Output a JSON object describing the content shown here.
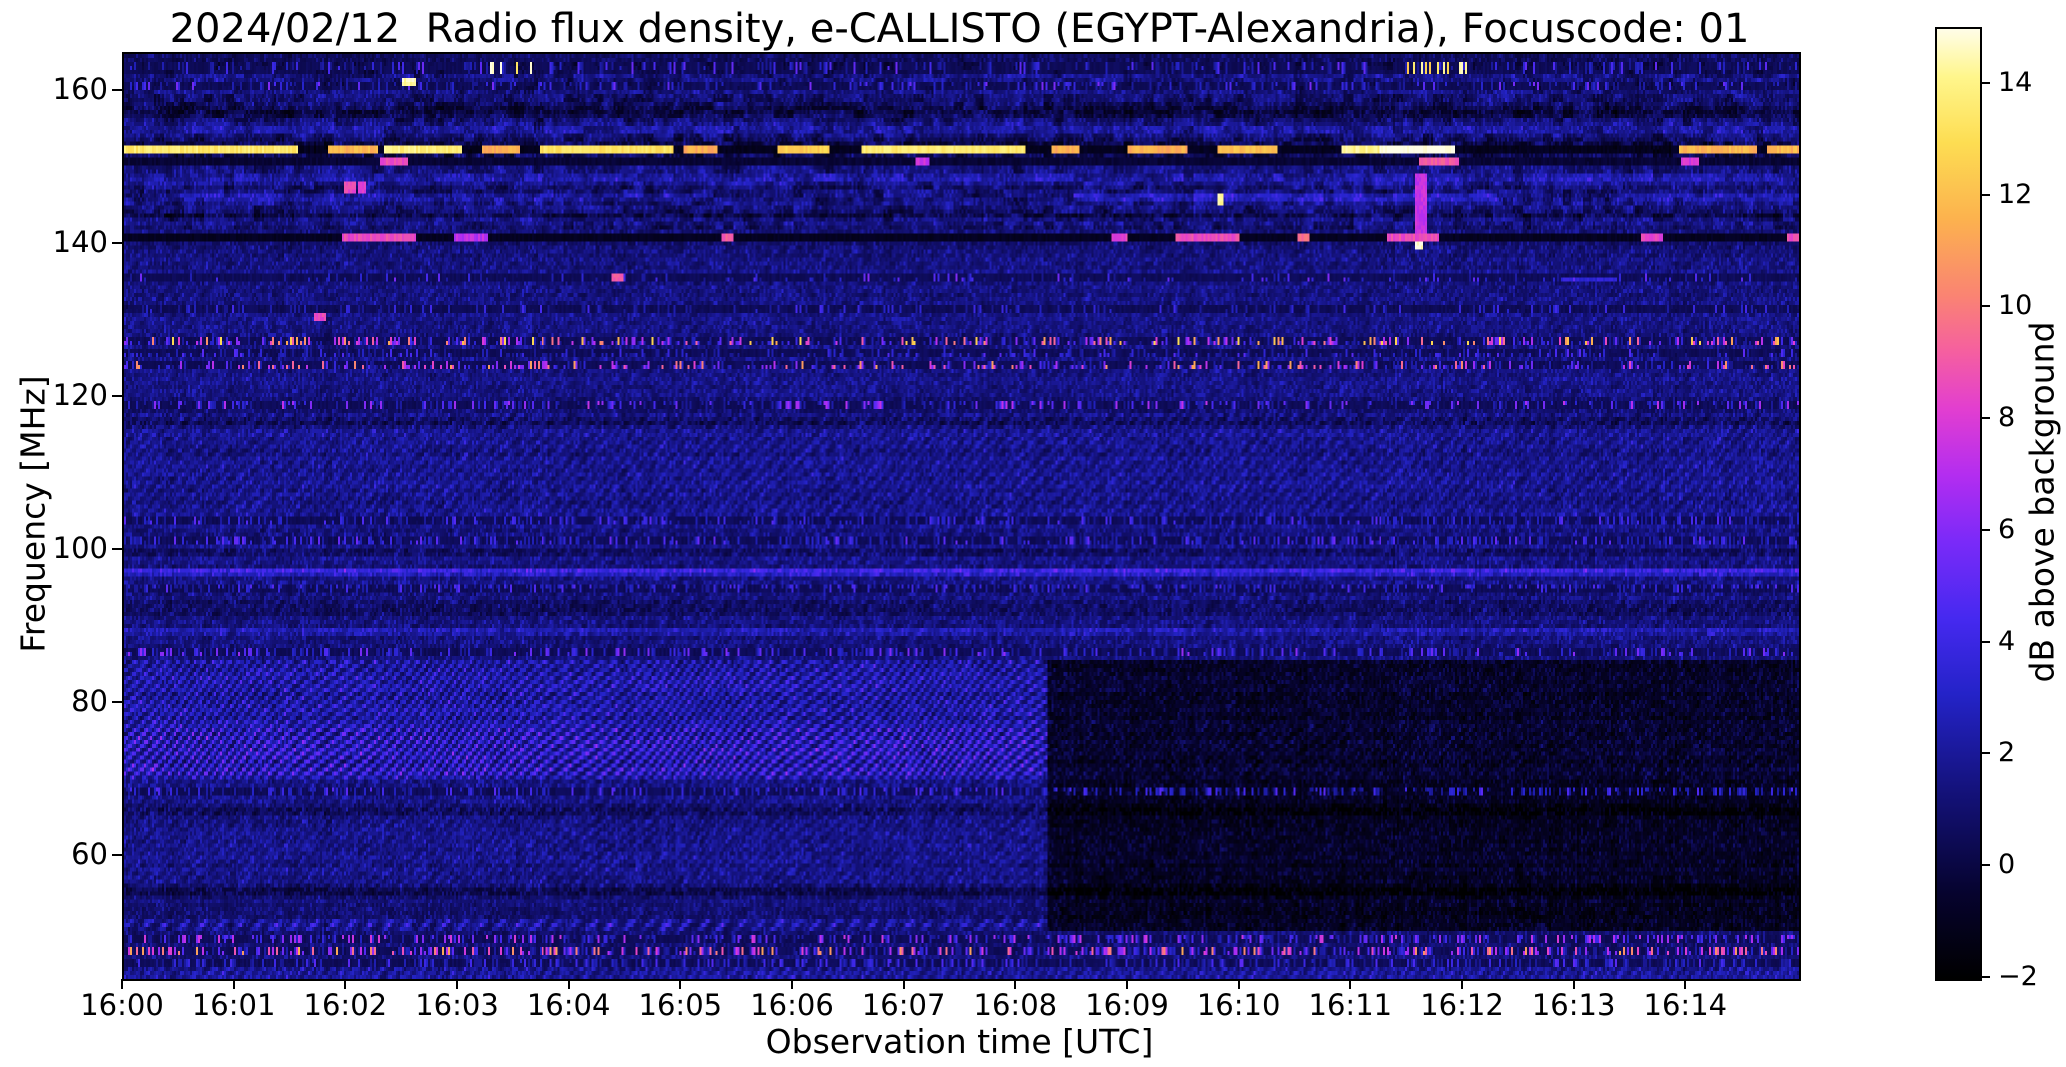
{
  "chart_data": {
    "type": "heatmap",
    "subtype": "radio-spectrogram",
    "title": "2024/02/12  Radio flux density, e-CALLISTO (EGYPT-Alexandria), Focuscode: 01",
    "xlabel": "Observation time [UTC]",
    "ylabel": "Frequency [MHz]",
    "x_ticks": [
      "16:00",
      "16:01",
      "16:02",
      "16:03",
      "16:04",
      "16:05",
      "16:06",
      "16:07",
      "16:08",
      "16:09",
      "16:10",
      "16:11",
      "16:12",
      "16:13",
      "16:14"
    ],
    "x_range_minutes": [
      0,
      15
    ],
    "y_ticks": [
      160,
      140,
      120,
      100,
      80,
      60
    ],
    "freq_range_mhz": [
      44,
      165
    ],
    "grid": false,
    "colorbar": {
      "label": "dB above background",
      "tick_labels": [
        "14",
        "12",
        "10",
        "8",
        "6",
        "4",
        "2",
        "0",
        "−2"
      ],
      "tick_values": [
        14,
        12,
        10,
        8,
        6,
        4,
        2,
        0,
        -2
      ],
      "range": [
        -2,
        15
      ],
      "colormap": "gnuplot2",
      "stops": [
        {
          "t": 0.0,
          "c": "#000000"
        },
        {
          "t": 0.09,
          "c": "#06032e"
        },
        {
          "t": 0.2,
          "c": "#14127c"
        },
        {
          "t": 0.3,
          "c": "#2423c8"
        },
        {
          "t": 0.38,
          "c": "#4629f0"
        },
        {
          "t": 0.46,
          "c": "#7a2af8"
        },
        {
          "t": 0.53,
          "c": "#b32df0"
        },
        {
          "t": 0.6,
          "c": "#e23ed0"
        },
        {
          "t": 0.66,
          "c": "#f55fa0"
        },
        {
          "t": 0.72,
          "c": "#fa8472"
        },
        {
          "t": 0.8,
          "c": "#fcb24e"
        },
        {
          "t": 0.88,
          "c": "#fddd52"
        },
        {
          "t": 0.95,
          "c": "#fff68c"
        },
        {
          "t": 1.0,
          "c": "#fffde8"
        }
      ]
    },
    "background_level_db": 0.85,
    "background_step": {
      "t_min": 8.27,
      "f0": 50.2,
      "f1": 85.5,
      "delta": -2.1,
      "fringe_scale": 0.22
    },
    "block_zone": {
      "f0": 142,
      "f1": 164,
      "amp": 1.9
    },
    "bright_line": {
      "f": 152.6,
      "hw": 0.62,
      "gap_level": -1.3,
      "segments": [
        [
          0.0,
          1.55,
          13.5
        ],
        [
          1.82,
          2.28,
          11.8
        ],
        [
          2.32,
          3.02,
          13.8
        ],
        [
          3.2,
          3.55,
          11.5
        ],
        [
          3.72,
          4.92,
          13.2
        ],
        [
          5.02,
          5.32,
          11.5
        ],
        [
          5.85,
          6.32,
          12.5
        ],
        [
          6.6,
          8.08,
          13.6
        ],
        [
          8.3,
          8.55,
          11.5
        ],
        [
          8.98,
          9.52,
          11.5
        ],
        [
          9.8,
          10.32,
          12.0
        ],
        [
          10.9,
          11.25,
          14.0
        ],
        [
          11.25,
          11.92,
          15.2
        ],
        [
          13.92,
          14.62,
          11.8
        ],
        [
          14.72,
          15.0,
          11.8
        ]
      ]
    },
    "rows": [
      {
        "f": 164.3,
        "hw": 0.8,
        "type": "dark",
        "depth": 0.8
      },
      {
        "f": 163.4,
        "hw": 0.8,
        "type": "speckle",
        "density": 0.3,
        "vmax": 5.5,
        "dark": true,
        "white_clusters": [
          [
            3.25,
            3.7
          ],
          [
            11.5,
            12.1
          ]
        ]
      },
      {
        "f": 160.9,
        "hw": 0.5,
        "type": "speckle",
        "density": 0.35,
        "vmax": 6,
        "dark": true
      },
      {
        "f": 157.6,
        "hw": 0.9,
        "type": "dark",
        "depth": 1.5
      },
      {
        "f": 155.2,
        "hw": 0.8,
        "type": "blue",
        "amp": 1.0
      },
      {
        "f": 152.6,
        "hw": 1.2,
        "type": "dark",
        "depth": 1.6
      },
      {
        "f": 150.8,
        "hw": 0.45,
        "type": "segline",
        "base": -0.6,
        "segments": [
          [
            2.3,
            2.55,
            8.5
          ],
          [
            7.08,
            7.22,
            7.5
          ],
          [
            11.6,
            11.95,
            9.0
          ],
          [
            13.95,
            14.1,
            8.0
          ]
        ]
      },
      {
        "f": 148.6,
        "hw": 0.7,
        "type": "blue",
        "amp": 1.1
      },
      {
        "f": 146.3,
        "hw": 0.6,
        "type": "segline-add",
        "segments": [
          [
            0.3,
            5.2,
            1.3
          ],
          [
            8.5,
            12.3,
            2.0
          ],
          [
            13.3,
            15.0,
            1.4
          ]
        ]
      },
      {
        "f": 144.0,
        "hw": 0.5,
        "type": "dark",
        "depth": 1.0
      },
      {
        "f": 141.0,
        "hw": 0.55,
        "type": "segline",
        "base": -1.2,
        "segments": [
          [
            1.95,
            2.62,
            8.6
          ],
          [
            2.95,
            3.25,
            7.2
          ],
          [
            5.36,
            5.46,
            9.0
          ],
          [
            8.84,
            8.98,
            8.2
          ],
          [
            9.42,
            9.98,
            8.6
          ],
          [
            10.5,
            10.62,
            9.5
          ],
          [
            11.32,
            11.78,
            8.6
          ],
          [
            13.58,
            13.78,
            8.2
          ],
          [
            14.9,
            15.0,
            8.4
          ]
        ]
      },
      {
        "f": 135.6,
        "hw": 0.5,
        "type": "speckle",
        "density": 0.18,
        "vmax": 6,
        "dark": true
      },
      {
        "f": 131.6,
        "hw": 0.5,
        "type": "speckle",
        "density": 0.3,
        "vmax": 4.5,
        "dark": true
      },
      {
        "f": 127.3,
        "hw": 0.55,
        "type": "rfi",
        "density": 0.55,
        "vmax": 13,
        "dark": true
      },
      {
        "f": 125.7,
        "hw": 0.45,
        "type": "speckle",
        "density": 0.4,
        "vmax": 5,
        "dark": true
      },
      {
        "f": 124.1,
        "hw": 0.55,
        "type": "rfi",
        "density": 0.5,
        "vmax": 11.5,
        "dark": true
      },
      {
        "f": 119.2,
        "hw": 0.6,
        "type": "rfi",
        "density": 0.45,
        "vmax": 7.5,
        "dark": true
      },
      {
        "f": 116.9,
        "hw": 0.7,
        "type": "dark",
        "depth": 1.2
      },
      {
        "f": 103.9,
        "hw": 0.5,
        "type": "speckle",
        "density": 0.5,
        "vmax": 5,
        "dark": true
      },
      {
        "f": 101.3,
        "hw": 0.5,
        "type": "speckle",
        "density": 0.5,
        "vmax": 5.5,
        "dark": true
      },
      {
        "f": 99.8,
        "hw": 0.4,
        "type": "dark",
        "depth": 1.2
      },
      {
        "f": 97.4,
        "hw": 0.55,
        "type": "blue",
        "amp": 2.4
      },
      {
        "f": 95.3,
        "hw": 0.5,
        "type": "speckle",
        "density": 0.5,
        "vmax": 5,
        "dark": true
      },
      {
        "f": 92.6,
        "hw": 1.0,
        "type": "dark",
        "depth": 0.9
      },
      {
        "f": 89.6,
        "hw": 0.5,
        "type": "blue",
        "amp": 1.4
      },
      {
        "f": 86.7,
        "hw": 0.55,
        "type": "speckle",
        "density": 0.5,
        "vmax": 6.5,
        "dark": true
      },
      {
        "f": 68.6,
        "hw": 0.55,
        "type": "speckle",
        "density": 0.45,
        "vmax": 5,
        "dark": true
      },
      {
        "f": 65.9,
        "hw": 0.8,
        "type": "dark",
        "depth": 1.1
      },
      {
        "f": 55.6,
        "hw": 0.7,
        "type": "dark",
        "depth": 1.2
      },
      {
        "f": 51.1,
        "hw": 0.85,
        "type": "dashline",
        "amp": 3.4,
        "period": 9.3
      },
      {
        "f": 49.3,
        "hw": 0.55,
        "type": "rfi",
        "density": 0.5,
        "vmax": 8,
        "dark": true
      },
      {
        "f": 47.6,
        "hw": 0.6,
        "type": "rfi",
        "density": 0.65,
        "vmax": 11.5,
        "dark": true
      },
      {
        "f": 46.1,
        "hw": 0.5,
        "type": "speckle",
        "density": 0.5,
        "vmax": 5,
        "dark": true
      }
    ],
    "fringe_zones": [
      {
        "f0": 104,
        "f1": 118,
        "amp": 1.15,
        "kx": 0.95,
        "ky": 1.7,
        "wa": 2.6,
        "wf": 0.045,
        "ph0": 0.7
      },
      {
        "f0": 86,
        "f1": 104,
        "amp": 0.6,
        "kx": 0.8,
        "ky": 1.5,
        "wa": 3.2,
        "wf": 0.05,
        "ph0": 2.1
      },
      {
        "f0": 70,
        "f1": 85.5,
        "amp": 2.6,
        "kx": 1.15,
        "ky": 2.2,
        "wa": 6.0,
        "wf": 0.052,
        "ph0": 4.0,
        "boost_f0": 70.5,
        "boost_f1": 77,
        "boost": 1.5
      },
      {
        "f0": 56,
        "f1": 70,
        "amp": 1.0,
        "kx": 1.05,
        "ky": 2.0,
        "wa": 4.0,
        "wf": 0.06,
        "ph0": 1.2
      },
      {
        "f0": 44,
        "f1": 46,
        "amp": 1.5,
        "kx": 1.1,
        "ky": 1.8,
        "wa": 3.0,
        "wf": 0.07,
        "ph0": 0.3
      },
      {
        "f0": 120,
        "f1": 140,
        "amp": 0.55,
        "kx": 0.85,
        "ky": 1.6,
        "wa": 2.8,
        "wf": 0.04,
        "ph0": 5.1
      }
    ],
    "events": [
      {
        "t": 2.02,
        "f": 147.6,
        "w": 0.1,
        "h": 1.2,
        "v": 8.5
      },
      {
        "t": 2.13,
        "f": 147.6,
        "w": 0.08,
        "h": 1.2,
        "v": 8.0
      },
      {
        "t": 2.55,
        "f": 161.5,
        "w": 0.12,
        "h": 0.9,
        "v": 14.5
      },
      {
        "t": 1.75,
        "f": 130.6,
        "w": 0.1,
        "h": 1.0,
        "v": 8.5
      },
      {
        "t": 4.42,
        "f": 136.0,
        "w": 0.12,
        "h": 1.0,
        "v": 9.0
      },
      {
        "t": 9.82,
        "f": 146.0,
        "w": 0.06,
        "h": 1.5,
        "v": 14.5
      },
      {
        "t": 11.62,
        "f": 145.0,
        "w": 0.1,
        "h": 9.0,
        "v": 7.5
      },
      {
        "t": 11.6,
        "f": 139.8,
        "w": 0.08,
        "h": 1.0,
        "v": 14.8
      },
      {
        "t": 13.12,
        "f": 135.5,
        "w": 0.5,
        "h": 0.9,
        "v": 3.5
      }
    ]
  },
  "layout_note_values": {
    "canvas_cols": 838,
    "canvas_rows": 232
  }
}
